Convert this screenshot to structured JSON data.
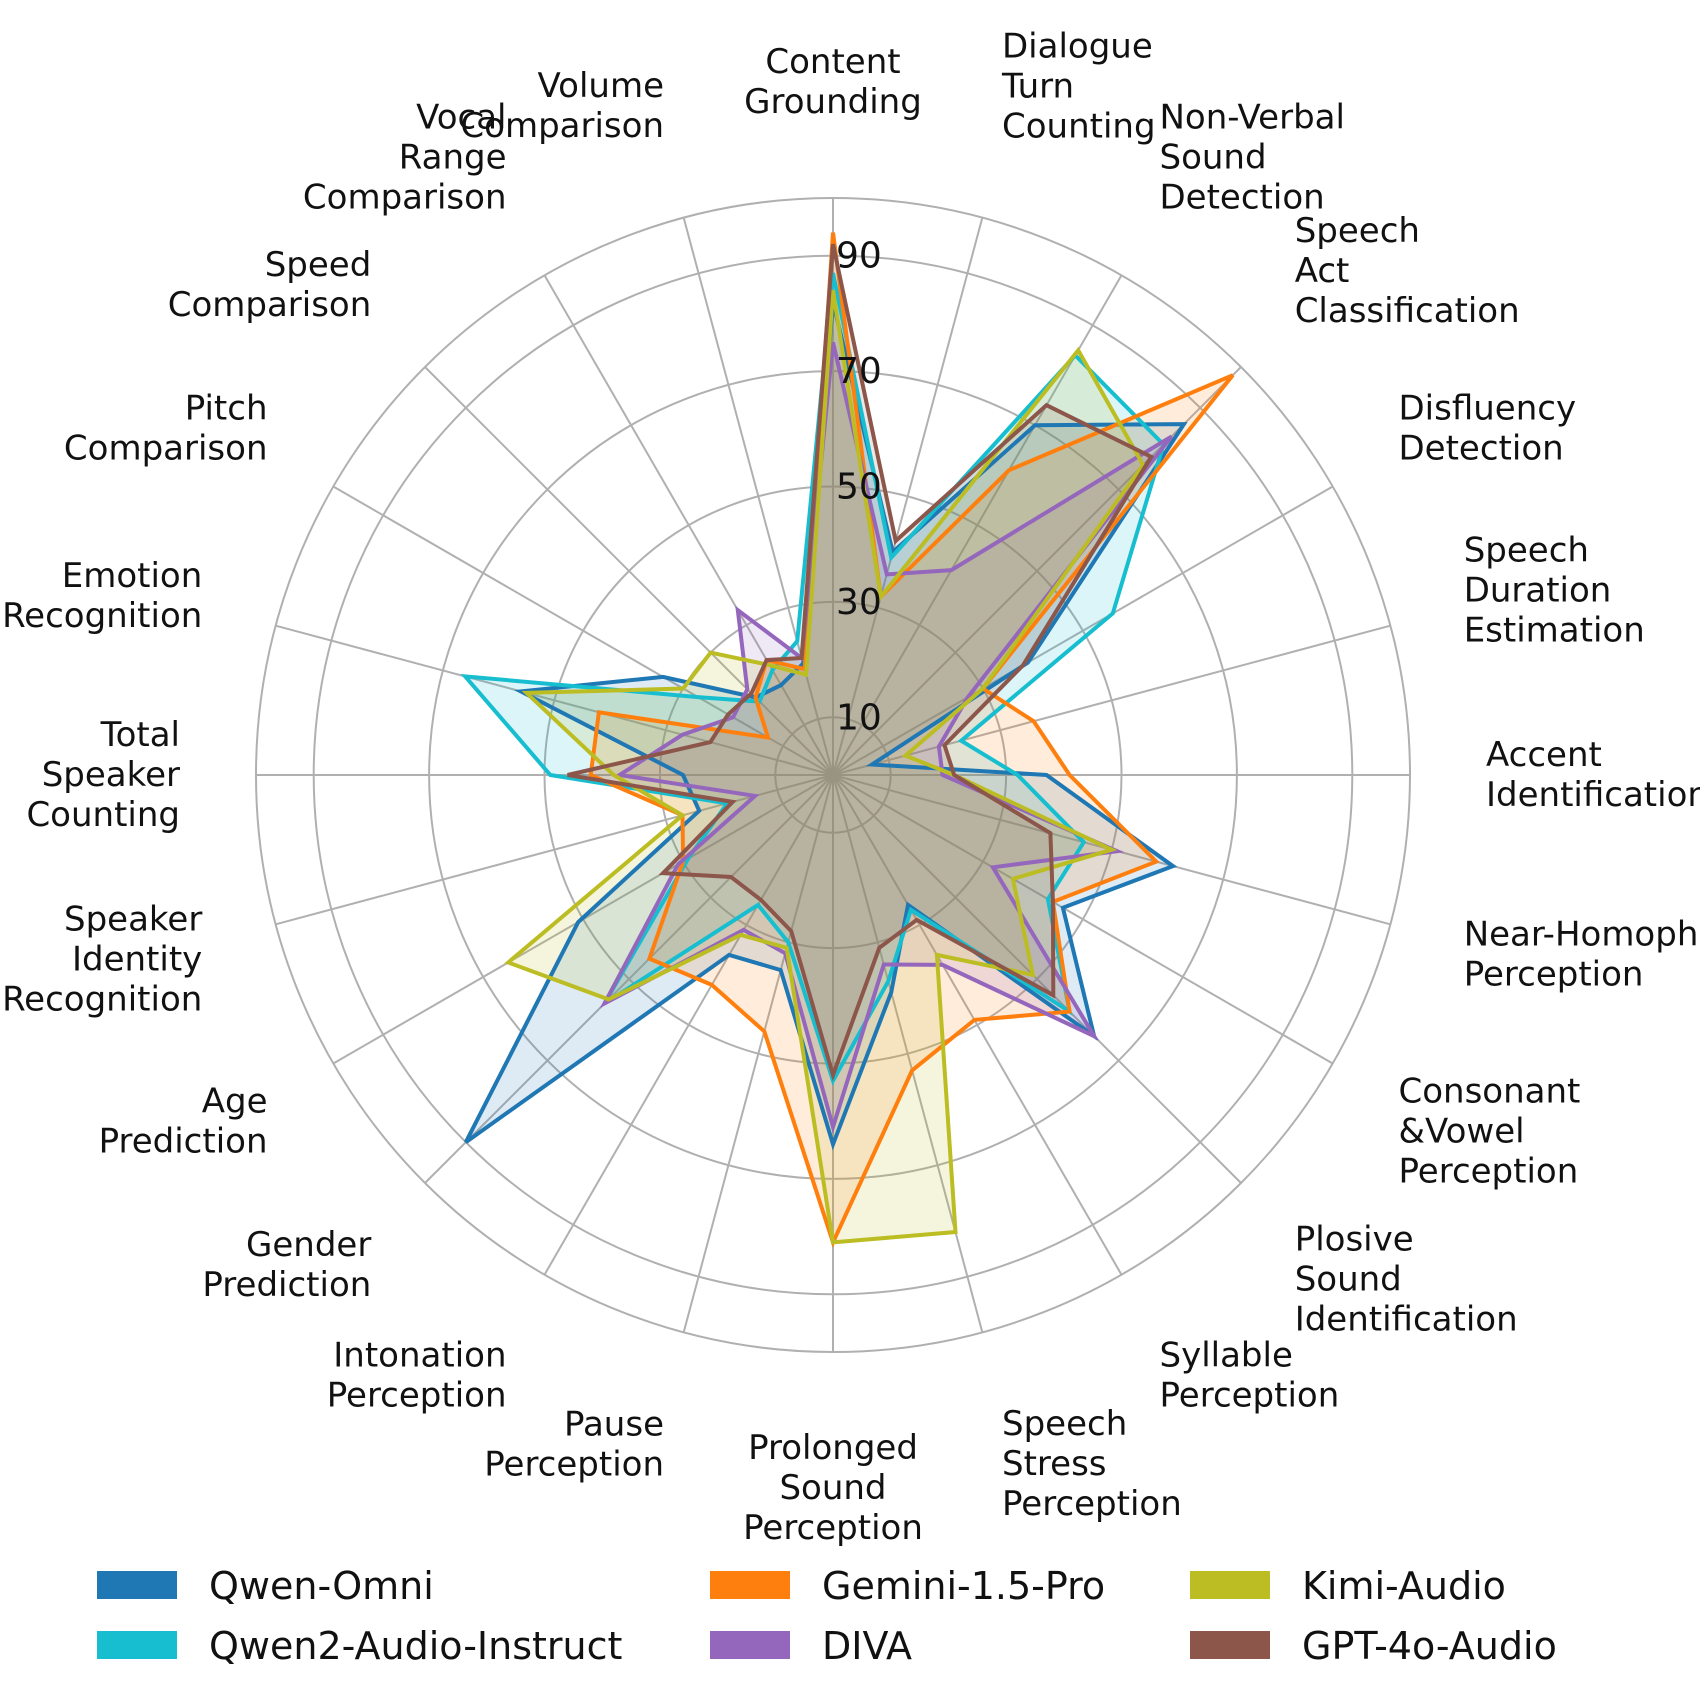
{
  "chart_data": {
    "type": "radar",
    "axes": [
      "Content\nGrounding",
      "Dialogue\nTurn\nCounting",
      "Non-Verbal\nSound\nDetection",
      "Speech\nAct\nClassification",
      "Disfluency\nDetection",
      "Speech\nDuration\nEstimation",
      "Accent\nIdentification",
      "Near-Homophone\nPerception",
      "Consonant\n&Vowel\nPerception",
      "Plosive\nSound\nIdentification",
      "Syllable\nPerception",
      "Speech\nStress\nPerception",
      "Prolonged\nSound\nPerception",
      "Pause\nPerception",
      "Intonation\nPerception",
      "Gender\nPrediction",
      "Age\nPrediction",
      "Speaker\nIdentity\nRecognition",
      "Total\nSpeaker\nCounting",
      "Emotion\nRecognition",
      "Pitch\nComparison",
      "Speed\nComparison",
      "Vocal\nRange\nComparison",
      "Volume\nComparison"
    ],
    "rticks": [
      10,
      30,
      50,
      70,
      90
    ],
    "rtick_labels": [
      "10",
      "30",
      "50",
      "70",
      "90"
    ],
    "rlim": [
      0,
      100
    ],
    "grid": true,
    "legend_position": "bottom",
    "series": [
      {
        "name": "Qwen-Omni",
        "color": "#1f77b4",
        "values": [
          82,
          40,
          70,
          86,
          39,
          7,
          37,
          61,
          46,
          64,
          26,
          39,
          64,
          35,
          36,
          90,
          51,
          24,
          26,
          56,
          34,
          19,
          18,
          20
        ]
      },
      {
        "name": "Qwen2-Audio-Instruct",
        "color": "#17becf",
        "values": [
          87,
          39,
          84,
          81,
          56,
          23,
          32,
          45,
          43,
          58,
          27,
          37,
          53,
          30,
          26,
          56,
          29,
          19,
          49,
          66,
          27,
          18,
          21,
          24
        ]
      },
      {
        "name": "Gemini-1.5-Pro",
        "color": "#ff7f0e",
        "values": [
          94,
          32,
          61,
          98,
          30,
          36,
          41,
          58,
          44,
          58,
          49,
          53,
          81,
          46,
          42,
          45,
          30,
          27,
          42,
          42,
          13,
          19,
          23,
          19
        ]
      },
      {
        "name": "DIVA",
        "color": "#9467bd",
        "values": [
          75,
          36,
          41,
          83,
          27,
          19,
          19,
          51,
          32,
          64,
          38,
          34,
          61,
          32,
          31,
          56,
          31,
          14,
          37,
          27,
          20,
          21,
          33,
          21
        ]
      },
      {
        "name": "Kimi-Audio",
        "color": "#bcbd22",
        "values": [
          84,
          32,
          85,
          76,
          30,
          13,
          21,
          50,
          36,
          49,
          36,
          82,
          81,
          31,
          32,
          55,
          65,
          27,
          38,
          55,
          30,
          30,
          22,
          18
        ]
      },
      {
        "name": "GPT-4o-Audio",
        "color": "#8c564b",
        "values": [
          92,
          42,
          74,
          78,
          38,
          20,
          21,
          39,
          44,
          54,
          29,
          31,
          52,
          28,
          25,
          25,
          34,
          18,
          46,
          22,
          21,
          20,
          23,
          21
        ]
      }
    ]
  }
}
